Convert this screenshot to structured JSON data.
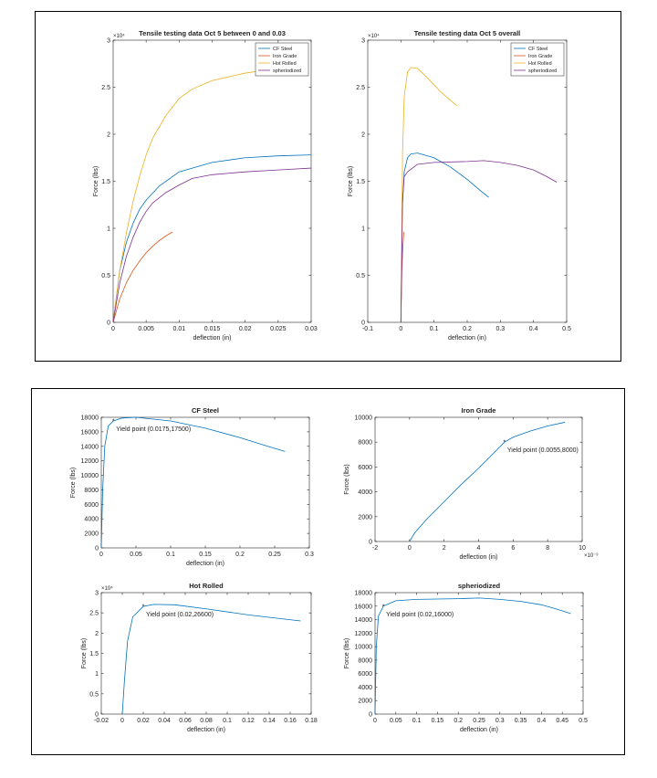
{
  "colors": {
    "cf_steel": "#0072BD",
    "iron_grade": "#D95319",
    "hot_rolled": "#EDB120",
    "spheriodized": "#7E2F8E",
    "single": "#0072BD"
  },
  "chart_data": [
    {
      "type": "line",
      "title": "Tensile testing data Oct 5 between 0 and 0.03",
      "xlabel": "deflection (in)",
      "ylabel": "Force (lbs)",
      "xlim": [
        0,
        0.03
      ],
      "ylim": [
        0,
        30000
      ],
      "y_exponent_label": "×10⁴",
      "x_ticks": [
        0,
        0.005,
        0.01,
        0.015,
        0.02,
        0.025,
        0.03
      ],
      "x_tick_labels": [
        "0",
        "0.005",
        "0.01",
        "0.015",
        "0.02",
        "0.025",
        "0.03"
      ],
      "y_ticks": [
        0,
        5000,
        10000,
        15000,
        20000,
        25000,
        30000
      ],
      "y_tick_labels": [
        "0",
        "0.5",
        "1",
        "1.5",
        "2",
        "2.5",
        "3"
      ],
      "legend": "top-right",
      "series": [
        {
          "name": "CF Steel",
          "color_key": "cf_steel",
          "x": [
            0,
            0.001,
            0.002,
            0.003,
            0.004,
            0.005,
            0.007,
            0.01,
            0.015,
            0.02,
            0.025,
            0.03
          ],
          "y": [
            0,
            5500,
            8500,
            10500,
            12000,
            13000,
            14500,
            16000,
            17000,
            17500,
            17700,
            17800
          ]
        },
        {
          "name": "Iron Grade",
          "color_key": "iron_grade",
          "x": [
            0,
            0.001,
            0.002,
            0.003,
            0.004,
            0.005,
            0.006,
            0.007,
            0.008,
            0.009
          ],
          "y": [
            0,
            2500,
            4200,
            5500,
            6500,
            7400,
            8100,
            8700,
            9200,
            9600
          ]
        },
        {
          "name": "Hot Rolled",
          "color_key": "hot_rolled",
          "x": [
            0,
            0.001,
            0.002,
            0.003,
            0.004,
            0.005,
            0.006,
            0.008,
            0.01,
            0.012,
            0.015,
            0.02,
            0.025
          ],
          "y": [
            0,
            5500,
            9500,
            12800,
            15500,
            17800,
            19600,
            22000,
            23800,
            24800,
            25700,
            26500,
            27000
          ]
        },
        {
          "name": "spheriodized",
          "color_key": "spheriodized",
          "x": [
            0,
            0.001,
            0.002,
            0.003,
            0.004,
            0.005,
            0.006,
            0.008,
            0.01,
            0.012,
            0.015,
            0.02,
            0.025,
            0.03
          ],
          "y": [
            0,
            4200,
            7000,
            9000,
            10600,
            11800,
            12700,
            13800,
            14600,
            15300,
            15700,
            16000,
            16200,
            16400
          ]
        }
      ]
    },
    {
      "type": "line",
      "title": "Tensile testing data Oct 5 overall",
      "xlabel": "deflection (in)",
      "ylabel": "Force (lbs)",
      "xlim": [
        -0.1,
        0.5
      ],
      "ylim": [
        0,
        30000
      ],
      "y_exponent_label": "×10⁴",
      "x_ticks": [
        -0.1,
        0,
        0.1,
        0.2,
        0.3,
        0.4,
        0.5
      ],
      "x_tick_labels": [
        "-0.1",
        "0",
        "0.1",
        "0.2",
        "0.3",
        "0.4",
        "0.5"
      ],
      "y_ticks": [
        0,
        5000,
        10000,
        15000,
        20000,
        25000,
        30000
      ],
      "y_tick_labels": [
        "0",
        "0.5",
        "1",
        "1.5",
        "2",
        "2.5",
        "3"
      ],
      "legend": "top-right",
      "series": [
        {
          "name": "CF Steel",
          "color_key": "cf_steel",
          "x": [
            0,
            0.004,
            0.01,
            0.02,
            0.03,
            0.05,
            0.1,
            0.15,
            0.2,
            0.24,
            0.265
          ],
          "y": [
            0,
            12000,
            16000,
            17500,
            17900,
            18000,
            17500,
            16500,
            15200,
            14000,
            13300
          ]
        },
        {
          "name": "Iron Grade",
          "color_key": "iron_grade",
          "x": [
            0,
            0.003,
            0.006,
            0.009
          ],
          "y": [
            0,
            5500,
            8100,
            9600
          ]
        },
        {
          "name": "Hot Rolled",
          "color_key": "hot_rolled",
          "x": [
            0,
            0.005,
            0.01,
            0.02,
            0.03,
            0.05,
            0.08,
            0.12,
            0.15,
            0.17
          ],
          "y": [
            0,
            18000,
            24000,
            26600,
            27100,
            27000,
            26000,
            24500,
            23600,
            23000
          ]
        },
        {
          "name": "spheriodized",
          "color_key": "spheriodized",
          "x": [
            0,
            0.005,
            0.01,
            0.02,
            0.05,
            0.1,
            0.2,
            0.25,
            0.3,
            0.35,
            0.4,
            0.44,
            0.47
          ],
          "y": [
            0,
            13000,
            15500,
            16000,
            16800,
            17000,
            17100,
            17200,
            17000,
            16700,
            16200,
            15500,
            14900
          ]
        }
      ]
    },
    {
      "type": "line",
      "title": "CF Steel",
      "xlabel": "deflection (in)",
      "ylabel": "Force (lbs)",
      "xlim": [
        0,
        0.3
      ],
      "ylim": [
        0,
        18000
      ],
      "x_ticks": [
        0,
        0.05,
        0.1,
        0.15,
        0.2,
        0.25,
        0.3
      ],
      "x_tick_labels": [
        "0",
        "0.05",
        "0.1",
        "0.15",
        "0.2",
        "0.25",
        "0.3"
      ],
      "y_ticks": [
        0,
        2000,
        4000,
        6000,
        8000,
        10000,
        12000,
        14000,
        16000,
        18000
      ],
      "y_tick_labels": [
        "0",
        "2000",
        "4000",
        "6000",
        "8000",
        "10000",
        "12000",
        "14000",
        "16000",
        "18000"
      ],
      "series": [
        {
          "color_key": "single",
          "x": [
            0,
            0.002,
            0.005,
            0.01,
            0.0175,
            0.03,
            0.05,
            0.1,
            0.15,
            0.2,
            0.24,
            0.265
          ],
          "y": [
            0,
            8000,
            14000,
            16800,
            17500,
            17900,
            18000,
            17500,
            16500,
            15200,
            14000,
            13300
          ]
        }
      ],
      "annotation": {
        "x": 0.0175,
        "y": 17500,
        "label": "Yield point (0.0175,17500)"
      }
    },
    {
      "type": "line",
      "title": "Iron Grade",
      "xlabel": "deflection (in)",
      "ylabel": "Force (lbs)",
      "xlim": [
        -2,
        10
      ],
      "ylim": [
        0,
        10000
      ],
      "x_exponent_label": "×10⁻³",
      "x_ticks": [
        -2,
        0,
        2,
        4,
        6,
        8,
        10
      ],
      "x_tick_labels": [
        "-2",
        "0",
        "2",
        "4",
        "6",
        "8",
        "10"
      ],
      "y_ticks": [
        0,
        2000,
        4000,
        6000,
        8000,
        10000
      ],
      "y_tick_labels": [
        "0",
        "2000",
        "4000",
        "6000",
        "8000",
        "10000"
      ],
      "series": [
        {
          "color_key": "single",
          "x": [
            0,
            0.3,
            1,
            2,
            3,
            4,
            5,
            5.5,
            6,
            7,
            8,
            9
          ],
          "y": [
            0,
            700,
            1800,
            3200,
            4600,
            5900,
            7300,
            8000,
            8400,
            8900,
            9300,
            9600
          ]
        }
      ],
      "annotation": {
        "x": 5.5,
        "y": 8000,
        "label": "Yield point (0.0055,8000)"
      }
    },
    {
      "type": "line",
      "title": "Hot Rolled",
      "xlabel": "deflection (in)",
      "ylabel": "Force (lbs)",
      "xlim": [
        -0.02,
        0.18
      ],
      "ylim": [
        0,
        30000
      ],
      "y_exponent_label": "×10⁴",
      "x_ticks": [
        -0.02,
        0,
        0.02,
        0.04,
        0.06,
        0.08,
        0.1,
        0.12,
        0.14,
        0.16,
        0.18
      ],
      "x_tick_labels": [
        "-0.02",
        "0",
        "0.02",
        "0.04",
        "0.06",
        "0.08",
        "0.1",
        "0.12",
        "0.14",
        "0.16",
        "0.18"
      ],
      "y_ticks": [
        0,
        5000,
        10000,
        15000,
        20000,
        25000,
        30000
      ],
      "y_tick_labels": [
        "0",
        "0.5",
        "1",
        "1.5",
        "2",
        "2.5",
        "3"
      ],
      "series": [
        {
          "color_key": "single",
          "x": [
            0,
            0.002,
            0.005,
            0.01,
            0.02,
            0.03,
            0.05,
            0.08,
            0.12,
            0.15,
            0.17
          ],
          "y": [
            0,
            8000,
            18000,
            24000,
            26600,
            27100,
            27000,
            26000,
            24500,
            23600,
            23000
          ]
        }
      ],
      "annotation": {
        "x": 0.02,
        "y": 26600,
        "label": "Yield point (0.02,26600)"
      }
    },
    {
      "type": "line",
      "title": "spheriodized",
      "xlabel": "deflection (in)",
      "ylabel": "Force (lbs)",
      "xlim": [
        0,
        0.5
      ],
      "ylim": [
        0,
        18000
      ],
      "x_ticks": [
        0,
        0.05,
        0.1,
        0.15,
        0.2,
        0.25,
        0.3,
        0.35,
        0.4,
        0.45,
        0.5
      ],
      "x_tick_labels": [
        "0",
        "0.05",
        "0.1",
        "0.15",
        "0.2",
        "0.25",
        "0.3",
        "0.35",
        "0.4",
        "0.45",
        "0.5"
      ],
      "y_ticks": [
        0,
        2000,
        4000,
        6000,
        8000,
        10000,
        12000,
        14000,
        16000,
        18000
      ],
      "y_tick_labels": [
        "0",
        "2000",
        "4000",
        "6000",
        "8000",
        "10000",
        "12000",
        "14000",
        "16000",
        "18000"
      ],
      "series": [
        {
          "color_key": "single",
          "x": [
            0,
            0.003,
            0.008,
            0.02,
            0.05,
            0.1,
            0.2,
            0.25,
            0.3,
            0.35,
            0.4,
            0.44,
            0.47
          ],
          "y": [
            0,
            10000,
            14500,
            16000,
            16800,
            17000,
            17100,
            17200,
            17000,
            16700,
            16200,
            15500,
            14900
          ]
        }
      ],
      "annotation": {
        "x": 0.02,
        "y": 16000,
        "label": "Yield point (0.02,16000)"
      }
    }
  ]
}
